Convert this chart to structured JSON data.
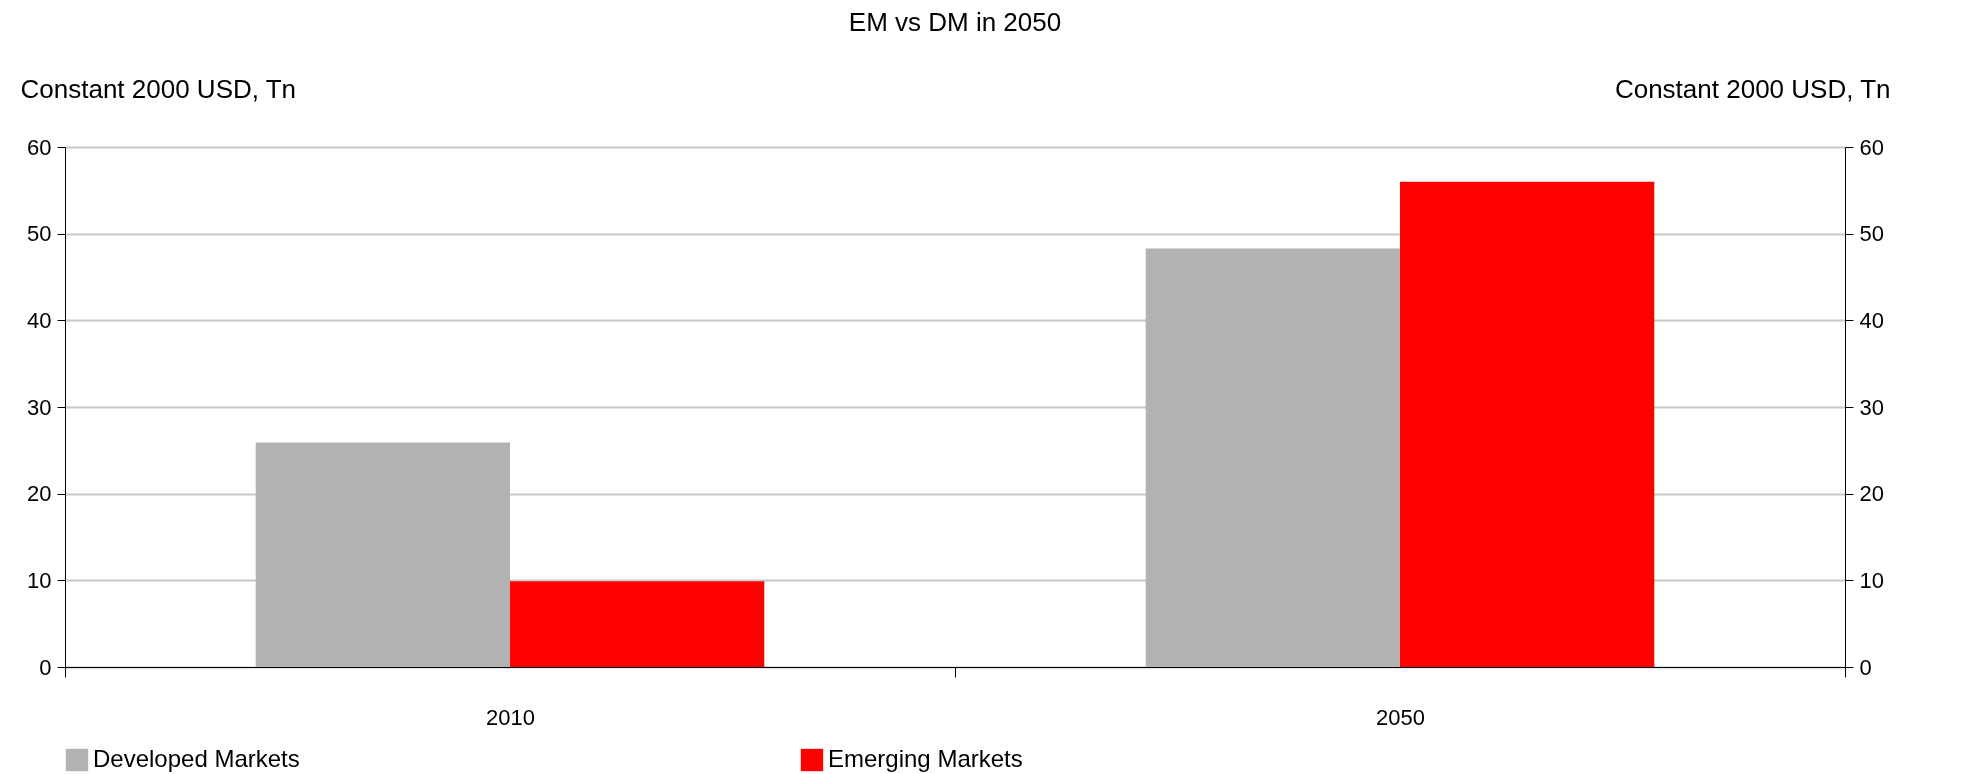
{
  "chart_data": {
    "type": "bar",
    "title": "EM vs DM in 2050",
    "ylabel": "Constant 2000 USD, Tn",
    "y2label": "Constant 2000 USD, Tn",
    "categories": [
      "2010",
      "2050"
    ],
    "series": [
      {
        "name": "Developed Markets",
        "color": "#b2b2b2",
        "values": [
          25.9,
          48.3
        ]
      },
      {
        "name": "Emerging Markets",
        "color": "#ff0000",
        "values": [
          9.9,
          56.0
        ]
      }
    ],
    "ylim": [
      0,
      60
    ],
    "yticks": [
      0,
      10,
      20,
      30,
      40,
      50,
      60
    ],
    "y2lim": [
      0,
      60
    ],
    "y2ticks": [
      0,
      10,
      20,
      30,
      40,
      50,
      60
    ],
    "grid": "y",
    "legend": "bottom"
  }
}
